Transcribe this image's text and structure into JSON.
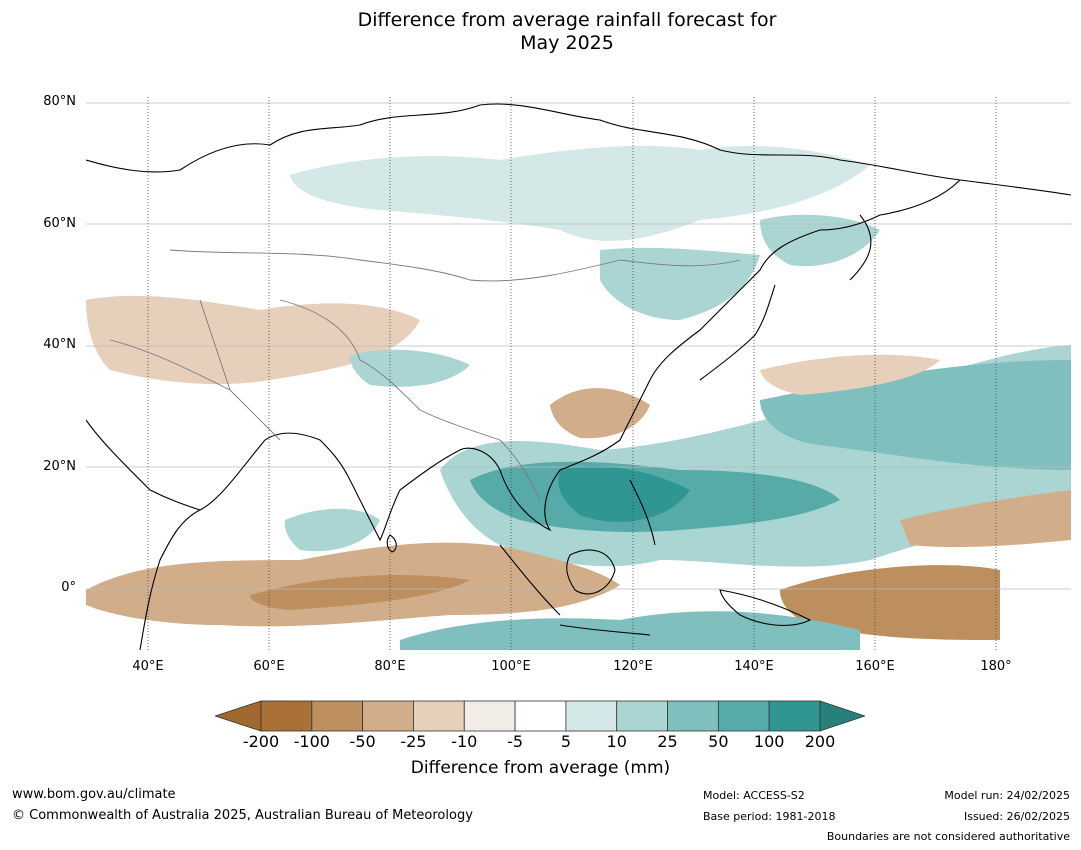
{
  "title_line1": "Difference from average rainfall forecast for",
  "title_line2": "May 2025",
  "map": {
    "lat_labels": [
      "80°N",
      "60°N",
      "40°N",
      "20°N",
      "0°"
    ],
    "lon_labels": [
      "40°E",
      "60°E",
      "80°E",
      "100°E",
      "120°E",
      "140°E",
      "160°E",
      "180°"
    ]
  },
  "colorbar": {
    "ticks": [
      "-200",
      "-100",
      "-50",
      "-25",
      "-10",
      "-5",
      "5",
      "10",
      "25",
      "50",
      "100",
      "200"
    ],
    "colors": [
      "#a97135",
      "#be8f5e",
      "#d2ad8a",
      "#e6d0bc",
      "#f2ece6",
      "#ffffff",
      "#d4e9e7",
      "#aad5d3",
      "#7fbfbe",
      "#56aaa8",
      "#2f9692"
    ],
    "under_color": "#a0672e",
    "over_color": "#26807c",
    "title": "Difference from average (mm)"
  },
  "footer": {
    "website": "www.bom.gov.au/climate",
    "copyright": "© Commonwealth of Australia 2025, Australian Bureau of Meteorology",
    "model": "Model: ACCESS-S2",
    "base_period": "Base period: 1981-2018",
    "model_run": "Model run: 24/02/2025",
    "issued": "Issued: 26/02/2025",
    "disclaimer": "Boundaries are not considered authoritative"
  }
}
